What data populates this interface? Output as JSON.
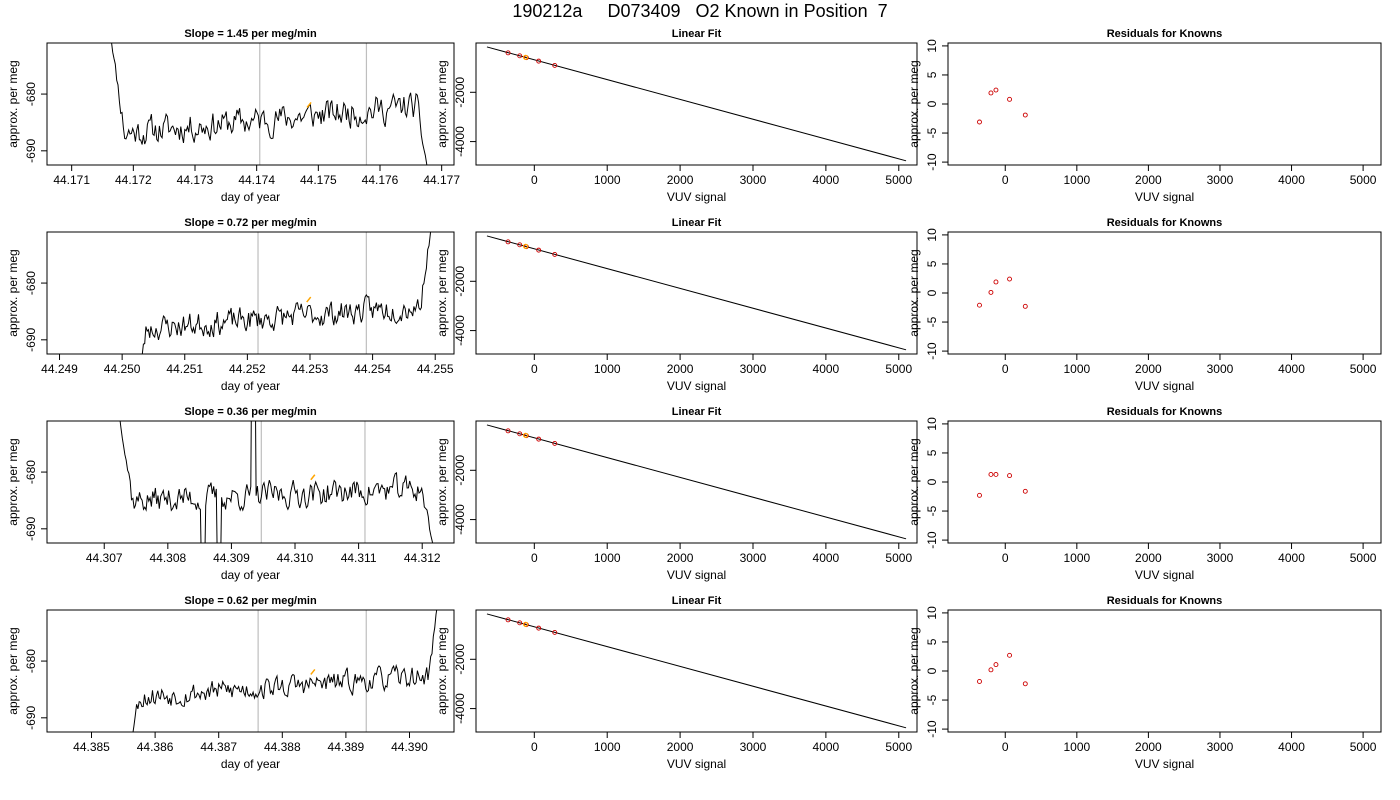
{
  "page_title": "190212a     D073409   O2 Known in Position  7",
  "rows": [
    {
      "slope_title": "Slope =  1.45  per meg/min",
      "fit_title": "Linear Fit",
      "resid_title": "Residuals for Knowns",
      "ts_ylabel": "approx. per meg",
      "ts_xlabel": "day of year",
      "fit_ylabel": "approx. per meg",
      "fit_xlabel": "VUV signal",
      "resid_ylabel": "approx. per meg",
      "resid_xlabel": "VUV signal"
    },
    {
      "slope_title": "Slope =  0.72  per meg/min",
      "fit_title": "Linear Fit",
      "resid_title": "Residuals for Knowns",
      "ts_ylabel": "approx. per meg",
      "ts_xlabel": "day of year",
      "fit_ylabel": "approx. per meg",
      "fit_xlabel": "VUV signal",
      "resid_ylabel": "approx. per meg",
      "resid_xlabel": "VUV signal"
    },
    {
      "slope_title": "Slope =  0.36  per meg/min",
      "fit_title": "Linear Fit",
      "resid_title": "Residuals for Knowns",
      "ts_ylabel": "approx. per meg",
      "ts_xlabel": "day of year",
      "fit_ylabel": "approx. per meg",
      "fit_xlabel": "VUV signal",
      "resid_ylabel": "approx. per meg",
      "resid_xlabel": "VUV signal"
    },
    {
      "slope_title": "Slope =  0.62  per meg/min",
      "fit_title": "Linear Fit",
      "resid_title": "Residuals for Knowns",
      "ts_ylabel": "approx. per meg",
      "ts_xlabel": "day of year",
      "fit_ylabel": "approx. per meg",
      "fit_xlabel": "VUV signal",
      "resid_ylabel": "approx. per meg",
      "resid_xlabel": "VUV signal"
    }
  ],
  "chart_data": [
    {
      "type": "line",
      "panel": "timeseries",
      "title": "Slope =  1.45  per meg/min",
      "xlabel": "day of year",
      "ylabel": "approx. per meg",
      "xlim": [
        44.1706,
        44.1772
      ],
      "ylim": [
        -692.5,
        -671
      ],
      "xticks": [
        "44.171",
        "44.172",
        "44.173",
        "44.174",
        "44.175",
        "44.176",
        "44.177"
      ],
      "yticks": [
        "-680",
        "-690"
      ],
      "start_day": 44.1716,
      "end_day": 44.1768,
      "vertical_lines": [
        44.17405,
        44.17578
      ],
      "trace": {
        "seed": 11,
        "baseline": -684.5,
        "slope_per_day": 1000,
        "noise": 2.2,
        "start_value": -667,
        "spike_in_span": 0.05,
        "end_value": -695,
        "end_drop_span": 0.04
      },
      "highlight": {
        "x": 44.17485,
        "y": -682,
        "color": "#ffa500"
      },
      "line_color": "#000000",
      "vline_color": "#bebebe"
    },
    {
      "type": "line",
      "panel": "linear_fit",
      "title": "Linear Fit",
      "xlabel": "VUV signal",
      "ylabel": "approx. per meg",
      "xlim": [
        -800,
        5250
      ],
      "ylim": [
        -4950,
        0
      ],
      "xticks": [
        0,
        1000,
        2000,
        3000,
        4000,
        5000
      ],
      "yticks": [
        -2000,
        -4000
      ],
      "fit_line": {
        "x": [
          -650,
          5100
        ],
        "y": [
          -160,
          -4780
        ]
      },
      "points": {
        "x": [
          -360,
          -200,
          -110,
          60,
          280
        ],
        "y": [
          -400,
          -520,
          -595,
          -735,
          -910
        ]
      },
      "highlight_points": {
        "x": [
          -120
        ],
        "y": [
          -580
        ]
      },
      "point_color": "#cd0000",
      "highlight_color": "#ffa500"
    },
    {
      "type": "scatter",
      "panel": "residuals",
      "title": "Residuals for Knowns",
      "xlabel": "VUV signal",
      "ylabel": "approx. per meg",
      "xlim": [
        -800,
        5250
      ],
      "ylim": [
        -10.5,
        10.5
      ],
      "xticks": [
        0,
        1000,
        2000,
        3000,
        4000,
        5000
      ],
      "yticks": [
        10,
        5,
        0,
        -5,
        -10
      ],
      "points": {
        "x": [
          -360,
          -200,
          -130,
          60,
          280
        ],
        "y": [
          -3.1,
          1.9,
          2.4,
          0.8,
          -1.9
        ]
      },
      "point_color": "#cd0000"
    },
    {
      "type": "line",
      "panel": "timeseries",
      "title": "Slope =  0.72  per meg/min",
      "xlabel": "day of year",
      "ylabel": "approx. per meg",
      "xlim": [
        44.2488,
        44.2553
      ],
      "ylim": [
        -692.5,
        -671
      ],
      "xticks": [
        "44.249",
        "44.250",
        "44.251",
        "44.252",
        "44.253",
        "44.254",
        "44.255"
      ],
      "yticks": [
        "-680",
        "-690"
      ],
      "start_day": 44.2502,
      "end_day": 44.255,
      "vertical_lines": [
        44.25217,
        44.2539
      ],
      "trace": {
        "seed": 23,
        "baseline": -686,
        "slope_per_day": 900,
        "noise": 1.9,
        "start_value": -700,
        "spike_in_span": 0.04,
        "end_value": -665,
        "end_drop_span": 0.05
      },
      "highlight": {
        "x": 44.25298,
        "y": -683,
        "color": "#ffa500"
      },
      "line_color": "#000000",
      "vline_color": "#bebebe"
    },
    {
      "type": "line",
      "panel": "linear_fit",
      "title": "Linear Fit",
      "xlabel": "VUV signal",
      "ylabel": "approx. per meg",
      "xlim": [
        -800,
        5250
      ],
      "ylim": [
        -4950,
        0
      ],
      "xticks": [
        0,
        1000,
        2000,
        3000,
        4000,
        5000
      ],
      "yticks": [
        -2000,
        -4000
      ],
      "fit_line": {
        "x": [
          -650,
          5100
        ],
        "y": [
          -160,
          -4780
        ]
      },
      "points": {
        "x": [
          -360,
          -200,
          -110,
          60,
          280
        ],
        "y": [
          -400,
          -520,
          -595,
          -735,
          -910
        ]
      },
      "highlight_points": {
        "x": [
          -120
        ],
        "y": [
          -580
        ]
      },
      "point_color": "#cd0000",
      "highlight_color": "#ffa500"
    },
    {
      "type": "scatter",
      "panel": "residuals",
      "title": "Residuals for Knowns",
      "xlabel": "VUV signal",
      "ylabel": "approx. per meg",
      "xlim": [
        -800,
        5250
      ],
      "ylim": [
        -10.5,
        10.5
      ],
      "xticks": [
        0,
        1000,
        2000,
        3000,
        4000,
        5000
      ],
      "yticks": [
        10,
        5,
        0,
        -5,
        -10
      ],
      "points": {
        "x": [
          -360,
          -200,
          -130,
          60,
          280
        ],
        "y": [
          -2.1,
          0.1,
          1.9,
          2.4,
          -2.3
        ]
      },
      "point_color": "#cd0000"
    },
    {
      "type": "line",
      "panel": "timeseries",
      "title": "Slope =  0.36  per meg/min",
      "xlabel": "day of year",
      "ylabel": "approx. per meg",
      "xlim": [
        44.3061,
        44.3125
      ],
      "ylim": [
        -692.5,
        -671
      ],
      "xticks": [
        "44.307",
        "44.308",
        "44.309",
        "44.310",
        "44.311",
        "44.312"
      ],
      "yticks": [
        "-680",
        "-690"
      ],
      "start_day": 44.3072,
      "end_day": 44.3122,
      "vertical_lines": [
        44.30947,
        44.3111
      ],
      "trace": {
        "seed": 37,
        "baseline": -684,
        "slope_per_day": 450,
        "noise": 2.0,
        "start_value": -667,
        "spike_in_span": 0.05,
        "end_value": -695,
        "end_drop_span": 0.04,
        "spike_up_day": 44.30935,
        "dip_days": [
          44.30855,
          44.3088
        ]
      },
      "highlight": {
        "x": 44.31028,
        "y": -681,
        "color": "#ffa500"
      },
      "line_color": "#000000",
      "vline_color": "#bebebe"
    },
    {
      "type": "line",
      "panel": "linear_fit",
      "title": "Linear Fit",
      "xlabel": "VUV signal",
      "ylabel": "approx. per meg",
      "xlim": [
        -800,
        5250
      ],
      "ylim": [
        -4950,
        0
      ],
      "xticks": [
        0,
        1000,
        2000,
        3000,
        4000,
        5000
      ],
      "yticks": [
        -2000,
        -4000
      ],
      "fit_line": {
        "x": [
          -650,
          5100
        ],
        "y": [
          -160,
          -4780
        ]
      },
      "points": {
        "x": [
          -360,
          -200,
          -110,
          60,
          280
        ],
        "y": [
          -400,
          -520,
          -595,
          -735,
          -910
        ]
      },
      "highlight_points": {
        "x": [
          -120
        ],
        "y": [
          -580
        ]
      },
      "point_color": "#cd0000",
      "highlight_color": "#ffa500"
    },
    {
      "type": "scatter",
      "panel": "residuals",
      "title": "Residuals for Knowns",
      "xlabel": "VUV signal",
      "ylabel": "approx. per meg",
      "xlim": [
        -800,
        5250
      ],
      "ylim": [
        -10.5,
        10.5
      ],
      "xticks": [
        0,
        1000,
        2000,
        3000,
        4000,
        5000
      ],
      "yticks": [
        10,
        5,
        0,
        -5,
        -10
      ],
      "points": {
        "x": [
          -360,
          -200,
          -130,
          60,
          280
        ],
        "y": [
          -2.3,
          1.3,
          1.3,
          1.1,
          -1.6
        ]
      },
      "point_color": "#cd0000"
    },
    {
      "type": "line",
      "panel": "timeseries",
      "title": "Slope =  0.62  per meg/min",
      "xlabel": "day of year",
      "ylabel": "approx. per meg",
      "xlim": [
        44.3843,
        44.3907
      ],
      "ylim": [
        -692.5,
        -671
      ],
      "xticks": [
        "44.385",
        "44.386",
        "44.387",
        "44.388",
        "44.389",
        "44.390"
      ],
      "yticks": [
        "-680",
        "-690"
      ],
      "start_day": 44.3855,
      "end_day": 44.3905,
      "vertical_lines": [
        44.38762,
        44.38932
      ],
      "trace": {
        "seed": 53,
        "baseline": -684.5,
        "slope_per_day": 800,
        "noise": 1.7,
        "start_value": -700,
        "spike_in_span": 0.05,
        "end_value": -665,
        "end_drop_span": 0.04
      },
      "highlight": {
        "x": 44.38848,
        "y": -682,
        "color": "#ffa500"
      },
      "line_color": "#000000",
      "vline_color": "#bebebe"
    },
    {
      "type": "line",
      "panel": "linear_fit",
      "title": "Linear Fit",
      "xlabel": "VUV signal",
      "ylabel": "approx. per meg",
      "xlim": [
        -800,
        5250
      ],
      "ylim": [
        -4950,
        0
      ],
      "xticks": [
        0,
        1000,
        2000,
        3000,
        4000,
        5000
      ],
      "yticks": [
        -2000,
        -4000
      ],
      "fit_line": {
        "x": [
          -650,
          5100
        ],
        "y": [
          -160,
          -4780
        ]
      },
      "points": {
        "x": [
          -360,
          -200,
          -110,
          60,
          280
        ],
        "y": [
          -400,
          -520,
          -595,
          -735,
          -910
        ]
      },
      "highlight_points": {
        "x": [
          -120
        ],
        "y": [
          -580
        ]
      },
      "point_color": "#cd0000",
      "highlight_color": "#ffa500"
    },
    {
      "type": "scatter",
      "panel": "residuals",
      "title": "Residuals for Knowns",
      "xlabel": "VUV signal",
      "ylabel": "approx. per meg",
      "xlim": [
        -800,
        5250
      ],
      "ylim": [
        -10.5,
        10.5
      ],
      "xticks": [
        0,
        1000,
        2000,
        3000,
        4000,
        5000
      ],
      "yticks": [
        10,
        5,
        0,
        -5,
        -10
      ],
      "points": {
        "x": [
          -360,
          -200,
          -130,
          60,
          280
        ],
        "y": [
          -1.8,
          0.2,
          1.1,
          2.7,
          -2.2
        ]
      },
      "point_color": "#cd0000"
    }
  ]
}
